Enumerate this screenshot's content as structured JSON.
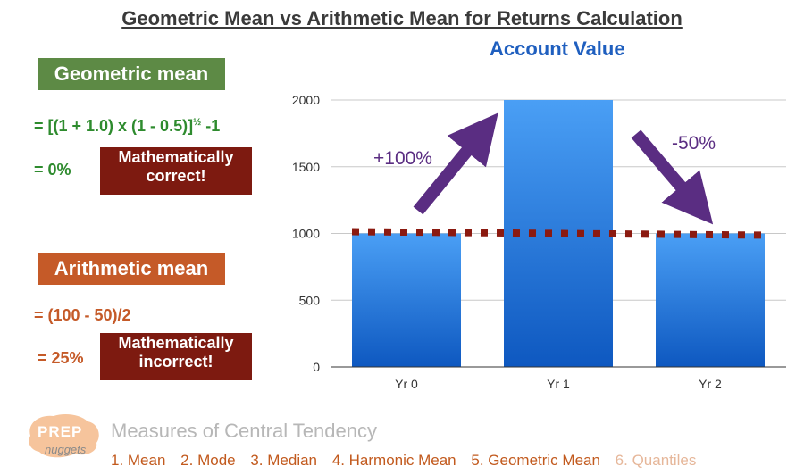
{
  "title": "Geometric Mean vs Arithmetic Mean for Returns Calculation",
  "geometric": {
    "label": "Geometric mean",
    "formula_line1": "= [(1 + 1.0) x (1 - 0.5)]",
    "formula_exp": "½",
    "formula_tail": " -1",
    "result": "= 0%",
    "verdict_line1": "Mathematically",
    "verdict_line2": "correct!"
  },
  "arithmetic": {
    "label": "Arithmetic mean",
    "formula": "= (100 - 50)/2",
    "result": "= 25%",
    "verdict_line1": "Mathematically",
    "verdict_line2": "incorrect!"
  },
  "chart_data": {
    "type": "bar",
    "title": "Account Value",
    "categories": [
      "Yr 0",
      "Yr 1",
      "Yr 2"
    ],
    "values": [
      1000,
      2000,
      1000
    ],
    "ylim": [
      0,
      2000
    ],
    "yticks": [
      0,
      500,
      1000,
      1500,
      2000
    ],
    "grid": true,
    "reference_line": 1000,
    "annotations": [
      "+100%",
      "-50%"
    ],
    "colors": {
      "bar_top": "#4a9ff5",
      "bar_bottom": "#0e58c0",
      "reference": "#8b1a10",
      "arrow": "#5a2d82"
    }
  },
  "footer": {
    "logo_top": "PREP",
    "logo_bottom": "nuggets",
    "section_title": "Measures of Central Tendency",
    "topics": [
      "1. Mean",
      "2. Mode",
      "3. Median",
      "4. Harmonic Mean",
      "5. Geometric Mean",
      "6. Quantiles"
    ]
  }
}
